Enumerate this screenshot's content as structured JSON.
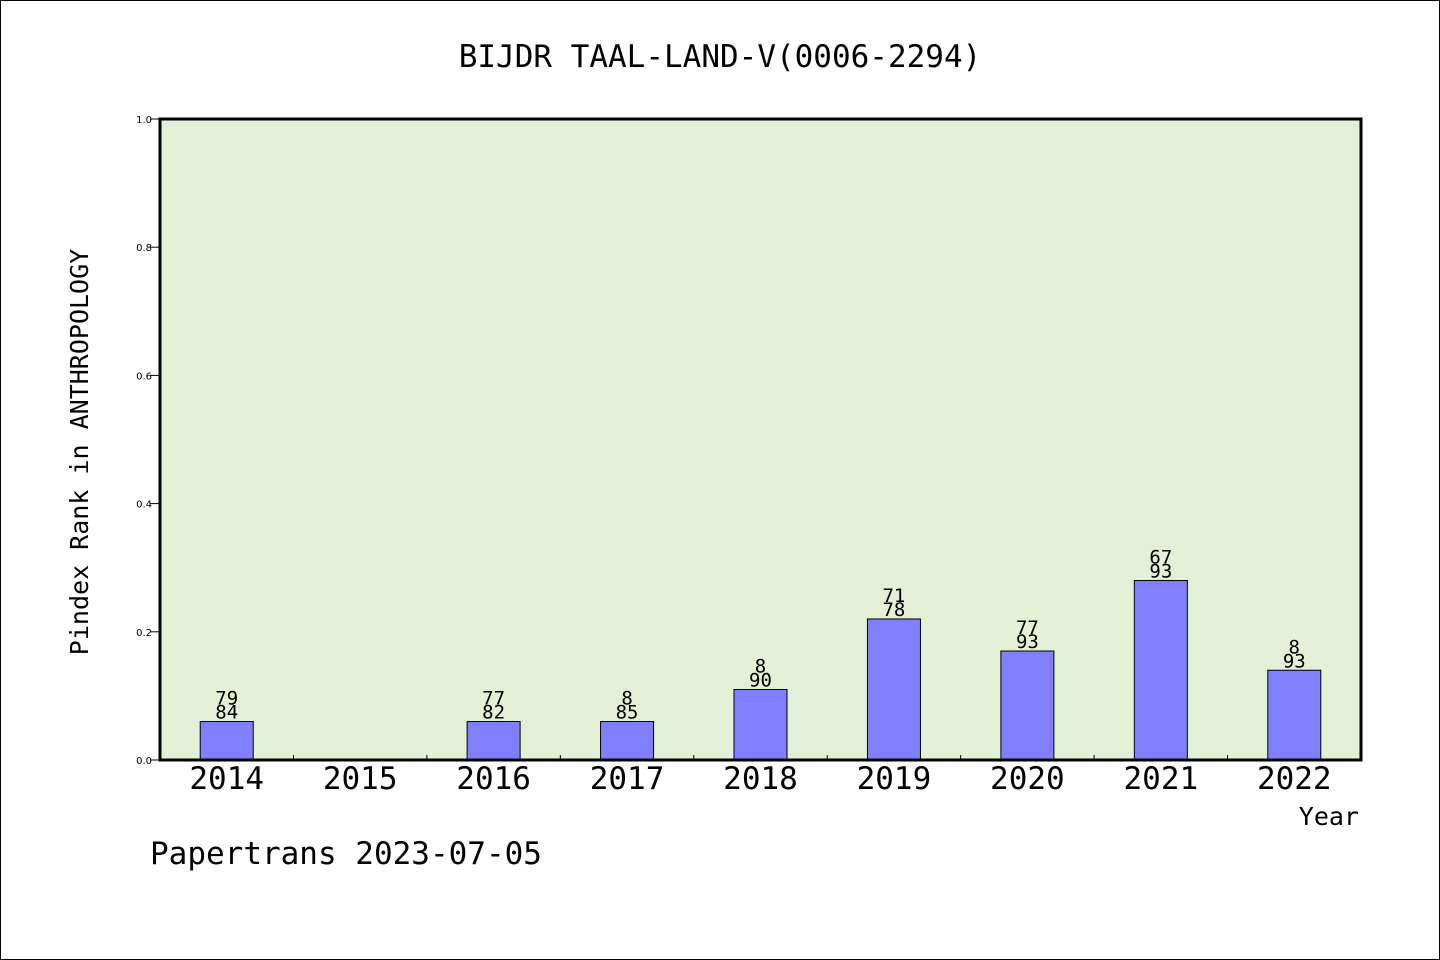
{
  "chart_data": {
    "type": "bar",
    "title": "BIJDR TAAL-LAND-V(0006-2294)",
    "xlabel": "Year",
    "ylabel": "Pindex Rank in ANTHROPOLOGY",
    "ylim": [
      0,
      1.0
    ],
    "yticks": [
      "0.0",
      "0.2",
      "0.4",
      "0.6",
      "0.8",
      "1.0"
    ],
    "categories": [
      "2014",
      "2015",
      "2016",
      "2017",
      "2018",
      "2019",
      "2020",
      "2021",
      "2022"
    ],
    "values": [
      0.06,
      0,
      0.06,
      0.06,
      0.11,
      0.22,
      0.17,
      0.28,
      0.14
    ],
    "label_top": [
      "79",
      "",
      "77",
      "8",
      "8",
      "71",
      "77",
      "67",
      "8"
    ],
    "label_bottom": [
      "84",
      "",
      "82",
      "85",
      "90",
      "78",
      "93",
      "93",
      "93"
    ],
    "grid": false,
    "colors": {
      "plot_background": "#e2f0d6",
      "bar_fill": "#8080ff",
      "axis": "#000000"
    }
  },
  "footer": "Papertrans 2023-07-05"
}
